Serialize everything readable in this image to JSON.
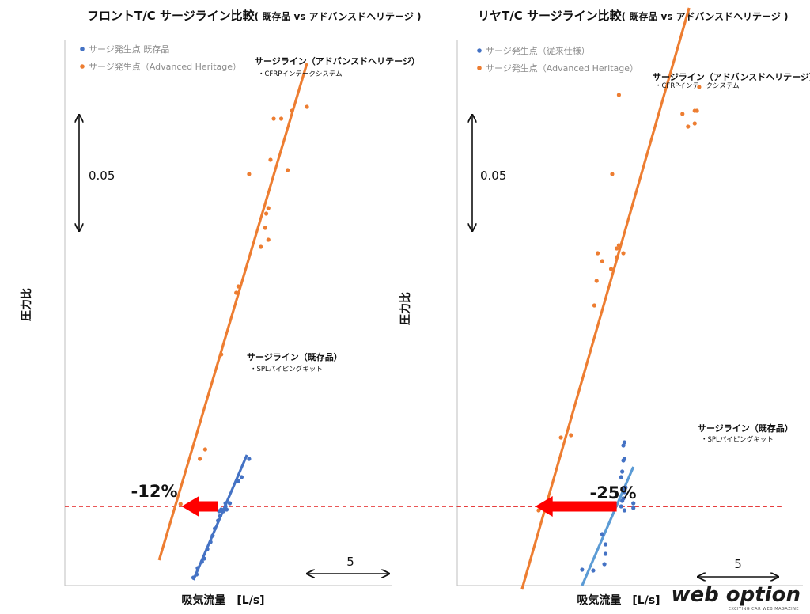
{
  "chart_data": [
    {
      "type": "scatter",
      "title": "フロントT/C サージライン比較",
      "title_suffix": "( 既存品 vs アドバンスドヘリテージ )",
      "ylabel": "圧力比",
      "xlabel": "吸気流量　[L/s]",
      "scale_x_label": "5",
      "scale_y_label": "0.05",
      "legend": [
        {
          "label": "サージ発生点 既存品",
          "color": "#4472c4"
        },
        {
          "label": "サージ発生点（Advanced Heritage）",
          "color": "#ed7d31"
        }
      ],
      "series": [
        {
          "name": "サージ発生点 既存品",
          "color": "#4472c4",
          "points": [
            [
              12.0,
              0.01
            ],
            [
              12.3,
              0.014
            ],
            [
              12.4,
              0.022
            ],
            [
              12.8,
              0.03
            ],
            [
              13.0,
              0.034
            ],
            [
              13.3,
              0.046
            ],
            [
              13.6,
              0.055
            ],
            [
              13.8,
              0.063
            ],
            [
              14.0,
              0.072
            ],
            [
              14.3,
              0.082
            ],
            [
              14.5,
              0.088
            ],
            [
              14.8,
              0.094
            ],
            [
              15.0,
              0.1
            ],
            [
              14.4,
              0.094
            ],
            [
              14.6,
              0.096
            ],
            [
              15.1,
              0.096
            ],
            [
              15.4,
              0.104
            ],
            [
              15.0,
              0.104
            ],
            [
              16.2,
              0.132
            ],
            [
              16.5,
              0.137
            ],
            [
              17.2,
              0.16
            ]
          ]
        },
        {
          "name": "サージ発生点（Advanced Heritage）",
          "color": "#ed7d31",
          "points": [
            [
              10.8,
              0.103
            ],
            [
              12.6,
              0.16
            ],
            [
              13.1,
              0.172
            ],
            [
              14.6,
              0.292
            ],
            [
              16.0,
              0.37
            ],
            [
              16.2,
              0.378
            ],
            [
              17.2,
              0.52
            ],
            [
              18.3,
              0.428
            ],
            [
              18.7,
              0.452
            ],
            [
              18.8,
              0.47
            ],
            [
              19.0,
              0.437
            ],
            [
              19.0,
              0.477
            ],
            [
              19.2,
              0.538
            ],
            [
              19.5,
              0.59
            ],
            [
              20.2,
              0.59
            ],
            [
              20.8,
              0.525
            ],
            [
              21.2,
              0.6
            ],
            [
              22.6,
              0.605
            ]
          ]
        }
      ],
      "lines": [
        {
          "label": "サージライン（既存品）",
          "sublabel": "・SPLパイピングキット",
          "color": "#4472c4",
          "from": [
            12.0,
            0.007
          ],
          "to": [
            17.0,
            0.165
          ]
        },
        {
          "label": "サージライン（アドバンスドヘリテージ）",
          "sublabel": "・CFRPインテークシステム",
          "color": "#ed7d31",
          "from": [
            8.8,
            0.032
          ],
          "to": [
            22.6,
            0.66
          ]
        }
      ],
      "reference_line": {
        "y": 0.1,
        "color": "#e32020"
      },
      "shift_annotation": {
        "label": "-12%",
        "from_x": 14.3,
        "to_x": 10.9
      }
    },
    {
      "type": "scatter",
      "title": "リヤT/C サージライン比較",
      "title_suffix": "( 既存品 vs アドバンスドヘリテージ )",
      "ylabel": "圧力比",
      "xlabel": "吸気流量　[L/s]",
      "scale_x_label": "5",
      "scale_y_label": "0.05",
      "legend": [
        {
          "label": "サージ発生点（従来仕様）",
          "color": "#4472c4"
        },
        {
          "label": "サージ発生点（Advanced Heritage）",
          "color": "#ed7d31"
        }
      ],
      "series": [
        {
          "name": "サージ発生点（従来仕様）",
          "color": "#4472c4",
          "points": [
            [
              11.2,
              0.02
            ],
            [
              12.2,
              0.019
            ],
            [
              13.3,
              0.052
            ],
            [
              13.3,
              0.04
            ],
            [
              13.2,
              0.027
            ],
            [
              13.0,
              0.065
            ],
            [
              14.7,
              0.1
            ],
            [
              14.8,
              0.107
            ],
            [
              15.0,
              0.118
            ],
            [
              15.1,
              0.124
            ],
            [
              14.9,
              0.121
            ],
            [
              14.8,
              0.144
            ],
            [
              14.9,
              0.158
            ],
            [
              15.0,
              0.16
            ],
            [
              14.7,
              0.137
            ],
            [
              14.9,
              0.177
            ],
            [
              15.0,
              0.181
            ],
            [
              15.8,
              0.104
            ],
            [
              15.8,
              0.098
            ],
            [
              14.9,
              0.11
            ],
            [
              15.0,
              0.095
            ]
          ]
        },
        {
          "name": "サージ発生点（Advanced Heritage）",
          "color": "#ed7d31",
          "points": [
            [
              7.3,
              0.095
            ],
            [
              9.3,
              0.187
            ],
            [
              10.2,
              0.19
            ],
            [
              12.3,
              0.354
            ],
            [
              12.5,
              0.385
            ],
            [
              12.6,
              0.42
            ],
            [
              13.0,
              0.41
            ],
            [
              13.9,
              0.52
            ],
            [
              13.8,
              0.4
            ],
            [
              14.3,
              0.415
            ],
            [
              14.5,
              0.43
            ],
            [
              14.3,
              0.426
            ],
            [
              14.9,
              0.42
            ],
            [
              14.5,
              0.62
            ],
            [
              20.2,
              0.596
            ],
            [
              20.7,
              0.58
            ],
            [
              21.5,
              0.6
            ],
            [
              21.3,
              0.584
            ],
            [
              21.7,
              0.63
            ],
            [
              21.3,
              0.6
            ]
          ]
        }
      ],
      "lines": [
        {
          "label": "サージライン（既存品）",
          "sublabel": "・SPLパイピングキット",
          "color": "#5b9bd5",
          "from": [
            11.2,
            0.0
          ],
          "to": [
            15.8,
            0.15
          ]
        },
        {
          "label": "サージライン（アドバンスドヘリテージ）",
          "sublabel": "・CFRPインテークシステム",
          "color": "#ed7d31",
          "from": [
            5.8,
            -0.005
          ],
          "to": [
            20.8,
            0.73
          ]
        }
      ],
      "reference_line": {
        "y": 0.1,
        "color": "#e32020"
      },
      "shift_annotation": {
        "label": "-25%",
        "from_x": 14.3,
        "to_x": 7.0
      }
    }
  ],
  "watermark": {
    "main": "web option",
    "sub": "EXCITING CAR WEB MAGAZINE"
  }
}
